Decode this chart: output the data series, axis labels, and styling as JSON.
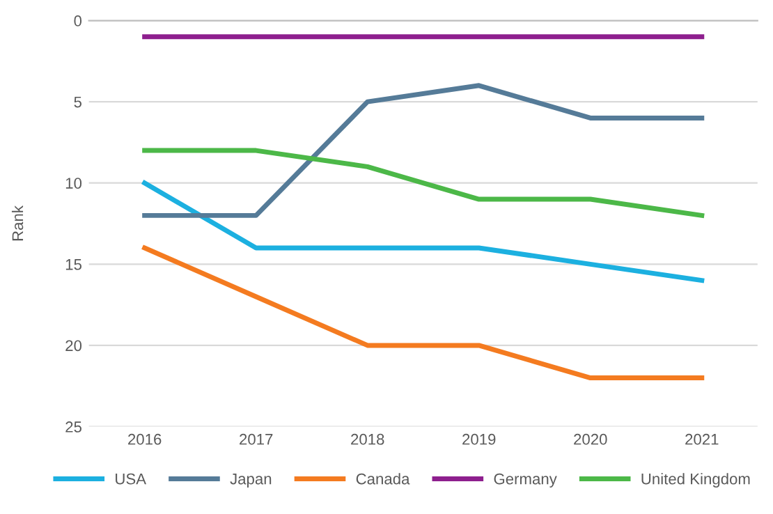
{
  "chart_data": {
    "type": "line",
    "ylabel": "Rank",
    "categories": [
      "2016",
      "2017",
      "2018",
      "2019",
      "2020",
      "2021"
    ],
    "series": [
      {
        "name": "USA",
        "color": "#1cb0e0",
        "values": [
          10,
          14,
          14,
          14,
          15,
          16
        ]
      },
      {
        "name": "Japan",
        "color": "#557b98",
        "values": [
          12,
          12,
          5,
          4,
          6,
          6
        ]
      },
      {
        "name": "Canada",
        "color": "#f47b20",
        "values": [
          14,
          17,
          20,
          20,
          22,
          22
        ]
      },
      {
        "name": "Germany",
        "color": "#8e1f8e",
        "values": [
          1,
          1,
          1,
          1,
          1,
          1
        ]
      },
      {
        "name": "United Kingdom",
        "color": "#4cb848",
        "values": [
          8,
          8,
          9,
          11,
          11,
          12
        ]
      }
    ],
    "ylim": [
      25,
      0
    ],
    "yticks": [
      0,
      5,
      10,
      15,
      20,
      25
    ],
    "grid": "y",
    "legend": "bottom",
    "marker": "none",
    "line_style": "solid"
  }
}
